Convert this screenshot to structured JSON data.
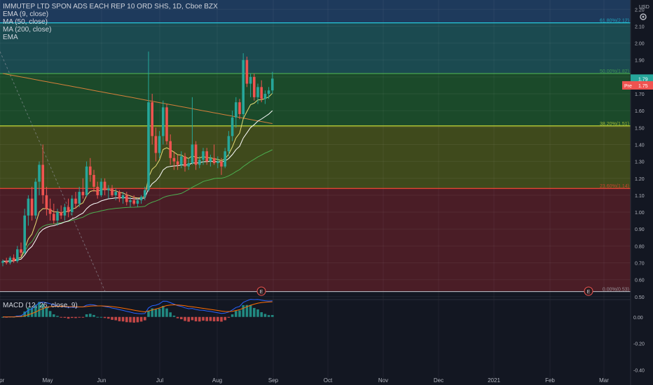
{
  "header": {
    "symbol_line": "IMMUTEP LTD SPON ADS EACH REP 10 ORD SHS, 1D, Cboe BZX",
    "indicators": [
      "EMA (9, close)",
      "MA (50, close)",
      "MA (200, close)",
      "EMA"
    ],
    "currency": "USD"
  },
  "macd_label": "MACD (12, 26, close, 9)",
  "price_badges": {
    "last": "1.79",
    "pre_label": "Pre",
    "pre_value": "1.75"
  },
  "chart_data": {
    "type": "candlestick",
    "title": "IMMUTEP LTD SPON ADS EACH REP 10 ORD SHS, 1D, Cboe BZX",
    "x_ticks": [
      "Apr",
      "May",
      "Jun",
      "Jul",
      "Aug",
      "Sep",
      "Oct",
      "Nov",
      "Dec",
      "2021",
      "Feb",
      "Mar"
    ],
    "y_ticks": [
      "2.20",
      "2.10",
      "2.00",
      "1.90",
      "1.80",
      "1.70",
      "1.60",
      "1.50",
      "1.40",
      "1.30",
      "1.20",
      "1.10",
      "1.00",
      "0.90",
      "0.80",
      "0.70",
      "0.60",
      "0.50"
    ],
    "ylim": [
      0.495,
      2.255
    ],
    "fibonacci": [
      {
        "ratio": "61.80%",
        "price": 2.12,
        "label": "61.80%(2.12)",
        "color": "#26c6da"
      },
      {
        "ratio": "50.00%",
        "price": 1.82,
        "label": "50.00%(1.82)",
        "color": "#4caf50"
      },
      {
        "ratio": "38.20%",
        "price": 1.51,
        "label": "38.20%(1.51)",
        "color": "#cddc39"
      },
      {
        "ratio": "23.60%",
        "price": 1.14,
        "label": "23.60%(1.14)",
        "color": "#f44336"
      },
      {
        "ratio": "0.00%",
        "price": 0.53,
        "label": "0.00%(0.53)",
        "color": "#b0b4bc"
      }
    ],
    "fib_zones": [
      {
        "from": 2.12,
        "to": 2.26,
        "color": "#1e3a5c"
      },
      {
        "from": 1.82,
        "to": 2.12,
        "color": "#1b4a50"
      },
      {
        "from": 1.51,
        "to": 1.82,
        "color": "#1b4a2a"
      },
      {
        "from": 1.14,
        "to": 1.51,
        "color": "#3f4a1c"
      },
      {
        "from": 0.53,
        "to": 1.14,
        "color": "#4a1d26"
      }
    ],
    "earnings_markers": [
      {
        "label": "E"
      },
      {
        "label": "E"
      }
    ],
    "candles": [
      [
        0.7,
        0.72,
        0.68,
        0.71
      ],
      [
        0.71,
        0.73,
        0.69,
        0.7
      ],
      [
        0.7,
        0.74,
        0.69,
        0.73
      ],
      [
        0.73,
        0.75,
        0.7,
        0.71
      ],
      [
        0.71,
        0.8,
        0.7,
        0.78
      ],
      [
        0.78,
        0.82,
        0.74,
        0.76
      ],
      [
        0.76,
        1.02,
        0.75,
        0.98
      ],
      [
        0.98,
        1.1,
        0.92,
        1.08
      ],
      [
        1.08,
        1.15,
        0.95,
        0.98
      ],
      [
        0.98,
        1.2,
        0.96,
        1.18
      ],
      [
        1.18,
        1.3,
        1.1,
        1.28
      ],
      [
        1.28,
        1.4,
        1.05,
        1.1
      ],
      [
        1.1,
        1.15,
        0.98,
        1.02
      ],
      [
        1.02,
        1.08,
        0.95,
        0.99
      ],
      [
        0.99,
        1.05,
        0.93,
        0.95
      ],
      [
        0.95,
        1.02,
        0.92,
        1.0
      ],
      [
        1.0,
        1.04,
        0.96,
        0.98
      ],
      [
        0.98,
        1.05,
        0.95,
        1.03
      ],
      [
        1.03,
        1.08,
        0.97,
        1.0
      ],
      [
        1.0,
        1.1,
        0.98,
        1.08
      ],
      [
        1.08,
        1.12,
        1.02,
        1.05
      ],
      [
        1.05,
        1.15,
        1.03,
        1.12
      ],
      [
        1.12,
        1.2,
        1.08,
        1.1
      ],
      [
        1.1,
        1.3,
        1.09,
        1.27
      ],
      [
        1.27,
        1.32,
        1.18,
        1.22
      ],
      [
        1.22,
        1.25,
        1.12,
        1.15
      ],
      [
        1.15,
        1.18,
        1.08,
        1.1
      ],
      [
        1.1,
        1.2,
        1.09,
        1.18
      ],
      [
        1.18,
        1.2,
        1.1,
        1.13
      ],
      [
        1.13,
        1.16,
        1.08,
        1.14
      ],
      [
        1.14,
        1.16,
        1.09,
        1.1
      ],
      [
        1.1,
        1.14,
        1.07,
        1.12
      ],
      [
        1.12,
        1.13,
        1.06,
        1.08
      ],
      [
        1.08,
        1.12,
        1.05,
        1.1
      ],
      [
        1.1,
        1.12,
        1.04,
        1.06
      ],
      [
        1.06,
        1.09,
        1.03,
        1.07
      ],
      [
        1.07,
        1.1,
        1.04,
        1.05
      ],
      [
        1.05,
        1.08,
        1.03,
        1.07
      ],
      [
        1.07,
        1.1,
        1.05,
        1.09
      ],
      [
        1.09,
        1.15,
        1.07,
        1.13
      ],
      [
        1.13,
        1.95,
        1.12,
        1.65
      ],
      [
        1.65,
        1.7,
        1.4,
        1.45
      ],
      [
        1.45,
        1.5,
        1.3,
        1.35
      ],
      [
        1.35,
        1.48,
        1.32,
        1.45
      ],
      [
        1.45,
        1.66,
        1.4,
        1.62
      ],
      [
        1.62,
        1.64,
        1.4,
        1.42
      ],
      [
        1.42,
        1.46,
        1.28,
        1.32
      ],
      [
        1.32,
        1.36,
        1.25,
        1.3
      ],
      [
        1.3,
        1.34,
        1.25,
        1.28
      ],
      [
        1.28,
        1.36,
        1.26,
        1.33
      ],
      [
        1.33,
        1.35,
        1.24,
        1.27
      ],
      [
        1.27,
        1.32,
        1.25,
        1.29
      ],
      [
        1.29,
        1.68,
        1.28,
        1.4
      ],
      [
        1.4,
        1.42,
        1.25,
        1.28
      ],
      [
        1.28,
        1.33,
        1.26,
        1.31
      ],
      [
        1.31,
        1.38,
        1.28,
        1.36
      ],
      [
        1.36,
        1.38,
        1.28,
        1.3
      ],
      [
        1.3,
        1.34,
        1.27,
        1.32
      ],
      [
        1.32,
        1.4,
        1.28,
        1.29
      ],
      [
        1.29,
        1.33,
        1.26,
        1.3
      ],
      [
        1.3,
        1.32,
        1.22,
        1.27
      ],
      [
        1.27,
        1.38,
        1.26,
        1.36
      ],
      [
        1.36,
        1.48,
        1.33,
        1.45
      ],
      [
        1.45,
        1.6,
        1.42,
        1.56
      ],
      [
        1.56,
        1.68,
        1.5,
        1.65
      ],
      [
        1.65,
        1.67,
        1.55,
        1.58
      ],
      [
        1.58,
        1.94,
        1.56,
        1.9
      ],
      [
        1.9,
        1.92,
        1.74,
        1.76
      ],
      [
        1.76,
        1.82,
        1.68,
        1.8
      ],
      [
        1.8,
        1.82,
        1.66,
        1.68
      ],
      [
        1.68,
        1.76,
        1.64,
        1.74
      ],
      [
        1.74,
        1.78,
        1.65,
        1.67
      ],
      [
        1.67,
        1.72,
        1.64,
        1.7
      ],
      [
        1.7,
        1.74,
        1.67,
        1.72
      ],
      [
        1.72,
        1.83,
        1.7,
        1.79
      ]
    ],
    "macd_axis": {
      "ticks": [
        "0.00",
        "-0.20",
        "-0.40"
      ],
      "ylim": [
        -0.46,
        0.12
      ]
    }
  },
  "colors": {
    "up": "#26a69a",
    "down": "#ef5350",
    "ema9": "#e6dd76",
    "ma50": "#4caf50",
    "ma200": "#d47f3a",
    "ema": "#ffffff"
  }
}
